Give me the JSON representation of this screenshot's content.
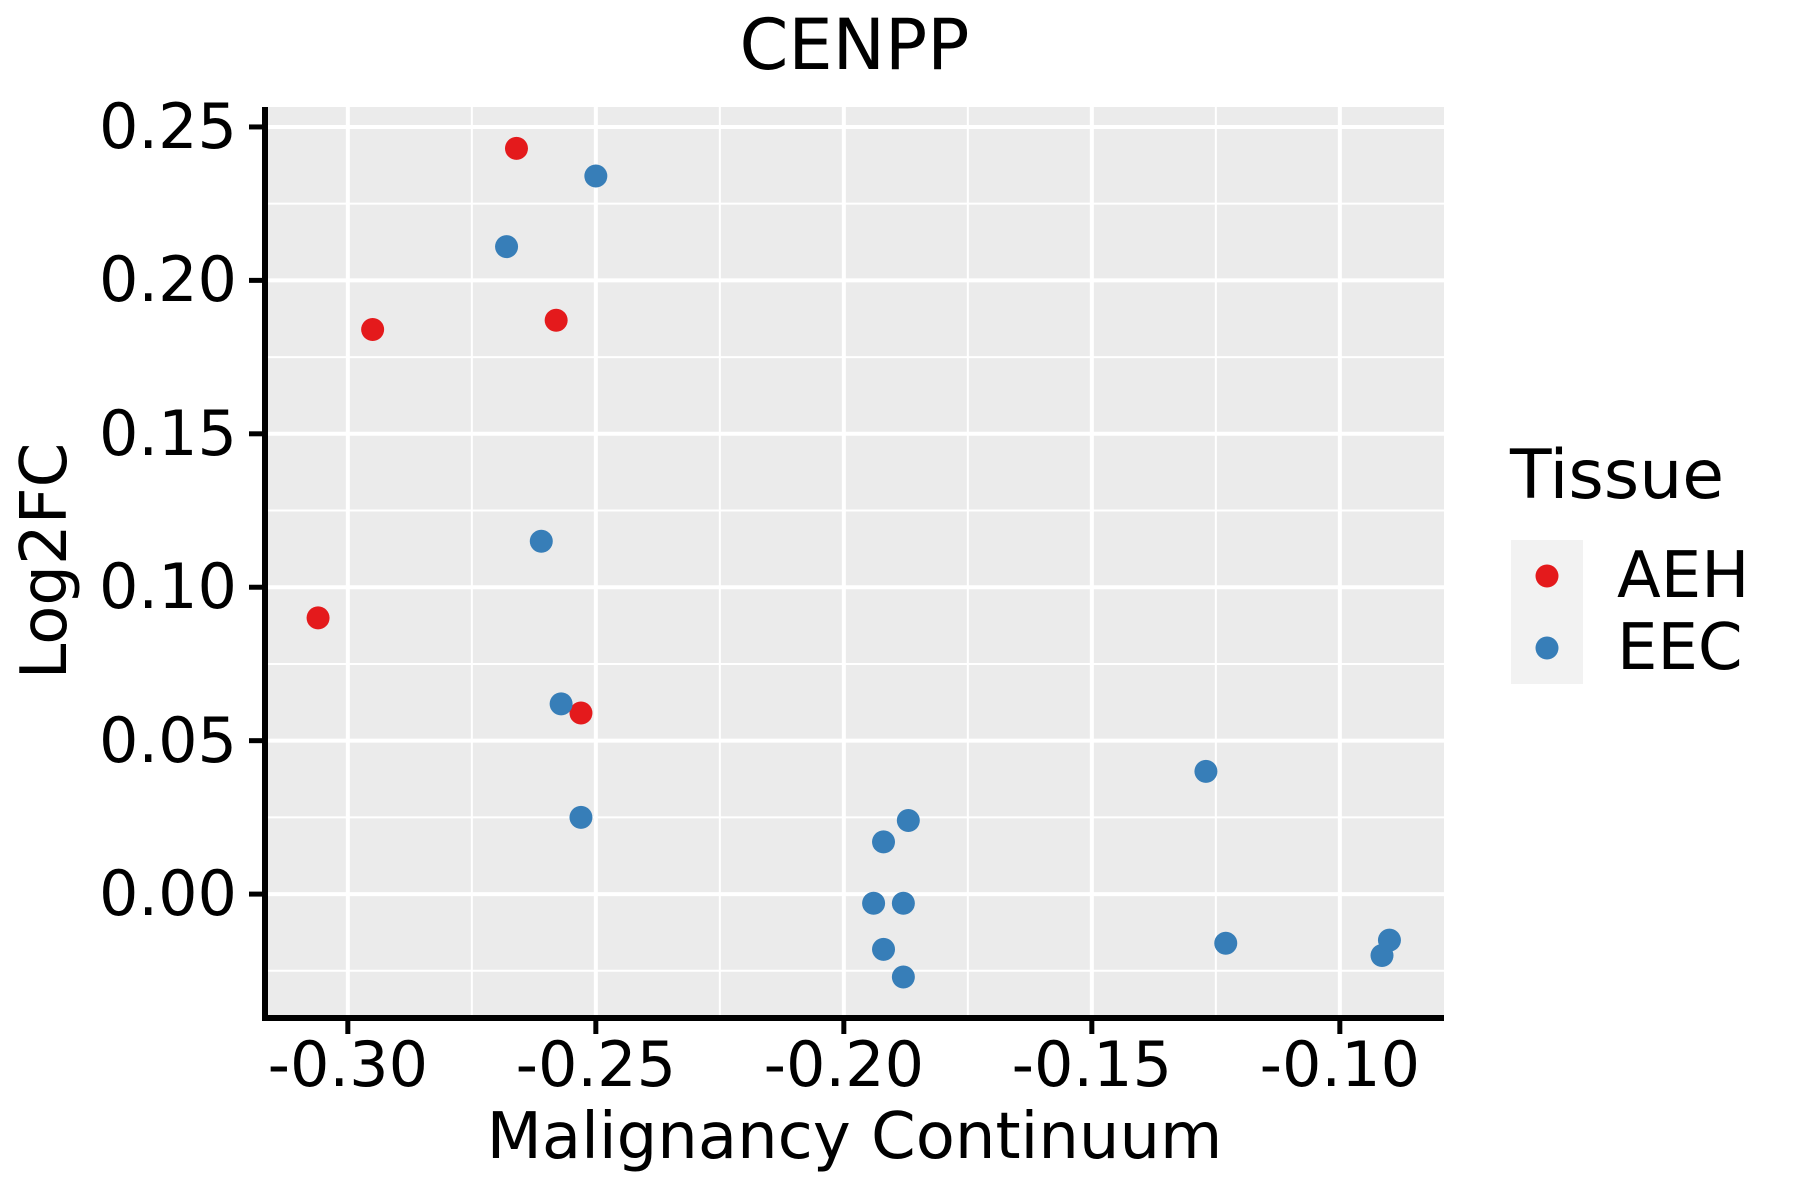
{
  "title": "CENPP",
  "axes": {
    "x": {
      "label": "Malignancy Continuum",
      "tick_labels": [
        "-0.30",
        "-0.25",
        "-0.20",
        "-0.15",
        "-0.10"
      ]
    },
    "y": {
      "label": "Log2FC",
      "tick_labels": [
        "0.25",
        "0.20",
        "0.15",
        "0.10",
        "0.05",
        "0.00"
      ]
    }
  },
  "legend": {
    "title": "Tissue",
    "items": [
      {
        "label": "AEH",
        "color": "#E41A1C"
      },
      {
        "label": "EEC",
        "color": "#377EB8"
      }
    ]
  },
  "colors": {
    "page_bg": "#FFFFFF",
    "panel_bg": "#EBEBEB",
    "grid": "#FFFFFF",
    "axis_line": "#000000",
    "tick_mark": "#000000",
    "text": "#000000",
    "legend_key_bg": "#F2F2F2",
    "aeh": "#E41A1C",
    "eec": "#377EB8"
  },
  "chart_data": {
    "type": "scatter",
    "title": "CENPP",
    "xlabel": "Malignancy Continuum",
    "ylabel": "Log2FC",
    "xlim": [
      -0.3167,
      -0.079
    ],
    "ylim": [
      -0.0394,
      0.2565
    ],
    "x_ticks": {
      "values": [
        -0.3,
        -0.25,
        -0.2,
        -0.15,
        -0.1
      ],
      "labels": [
        "-0.30",
        "-0.25",
        "-0.20",
        "-0.15",
        "-0.10"
      ]
    },
    "y_ticks": {
      "values": [
        0.25,
        0.2,
        0.15,
        0.1,
        0.05,
        0.0
      ],
      "labels": [
        "0.25",
        "0.20",
        "0.15",
        "0.10",
        "0.05",
        "0.00"
      ]
    },
    "grid": true,
    "grid_style": "white major and minor gridlines on gray panel",
    "legend_position": "right",
    "legend_title": "Tissue",
    "series": [
      {
        "name": "AEH",
        "color": "#E41A1C",
        "points": [
          [
            -0.266,
            0.243
          ],
          [
            -0.295,
            0.184
          ],
          [
            -0.258,
            0.187
          ],
          [
            -0.306,
            0.09
          ],
          [
            -0.253,
            0.059
          ]
        ]
      },
      {
        "name": "EEC",
        "color": "#377EB8",
        "points": [
          [
            -0.25,
            0.234
          ],
          [
            -0.268,
            0.211
          ],
          [
            -0.261,
            0.115
          ],
          [
            -0.257,
            0.062
          ],
          [
            -0.253,
            0.025
          ],
          [
            -0.187,
            0.024
          ],
          [
            -0.192,
            0.017
          ],
          [
            -0.194,
            -0.003
          ],
          [
            -0.188,
            -0.003
          ],
          [
            -0.192,
            -0.018
          ],
          [
            -0.188,
            -0.027
          ],
          [
            -0.127,
            0.04
          ],
          [
            -0.123,
            -0.016
          ],
          [
            -0.0915,
            -0.02
          ],
          [
            -0.09,
            -0.015
          ]
        ]
      }
    ]
  }
}
